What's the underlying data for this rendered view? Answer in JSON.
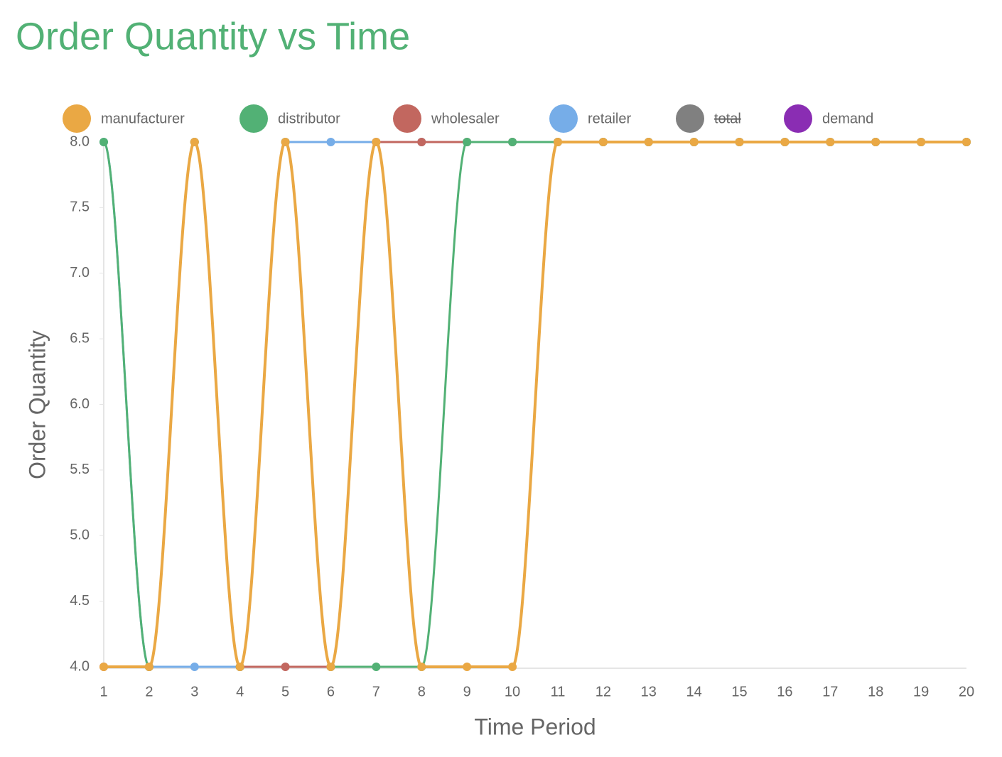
{
  "chart_data": {
    "type": "line",
    "title": "Order Quantity vs Time",
    "x_label": "Time Period",
    "y_label": "Order Quantity",
    "categories": [
      "1",
      "2",
      "3",
      "4",
      "5",
      "6",
      "7",
      "8",
      "9",
      "10",
      "11",
      "12",
      "13",
      "14",
      "15",
      "16",
      "17",
      "18",
      "19",
      "20"
    ],
    "series": [
      {
        "name": "manufacturer",
        "color": "#eaa844",
        "values": [
          4,
          4,
          8,
          4,
          8,
          4,
          8,
          4,
          4,
          4,
          8,
          8,
          8,
          8,
          8,
          8,
          8,
          8,
          8,
          8
        ]
      },
      {
        "name": "distributor",
        "color": "#52b175",
        "values": [
          8,
          4,
          8,
          4,
          8,
          4,
          4,
          4,
          8,
          8,
          8,
          8,
          8,
          8,
          8,
          8,
          8,
          8,
          8,
          8
        ]
      },
      {
        "name": "wholesaler",
        "color": "#c2675f",
        "values": [
          4,
          4,
          8,
          4,
          4,
          4,
          8,
          8,
          8,
          8,
          8,
          8,
          8,
          8,
          8,
          8,
          8,
          8,
          8,
          8
        ]
      },
      {
        "name": "retailer",
        "color": "#76ade8",
        "values": [
          8,
          4,
          4,
          4,
          8,
          8,
          8,
          8,
          8,
          8,
          8,
          8,
          8,
          8,
          8,
          8,
          8,
          8,
          8,
          8
        ]
      },
      {
        "name": "total",
        "color": "#808080",
        "hidden": true
      },
      {
        "name": "demand",
        "color": "#8a2db3"
      }
    ],
    "ylim": [
      4,
      8
    ],
    "yticks": [
      {
        "value": 4,
        "label": "4.0"
      },
      4.5,
      {
        "value": 5,
        "label": "5.0"
      },
      5.5,
      {
        "value": 6,
        "label": "6.0"
      },
      6.5,
      {
        "value": 7,
        "label": "7.0"
      },
      7.5,
      {
        "value": 8,
        "label": "8.0"
      }
    ],
    "grid": false,
    "legend": "top"
  }
}
